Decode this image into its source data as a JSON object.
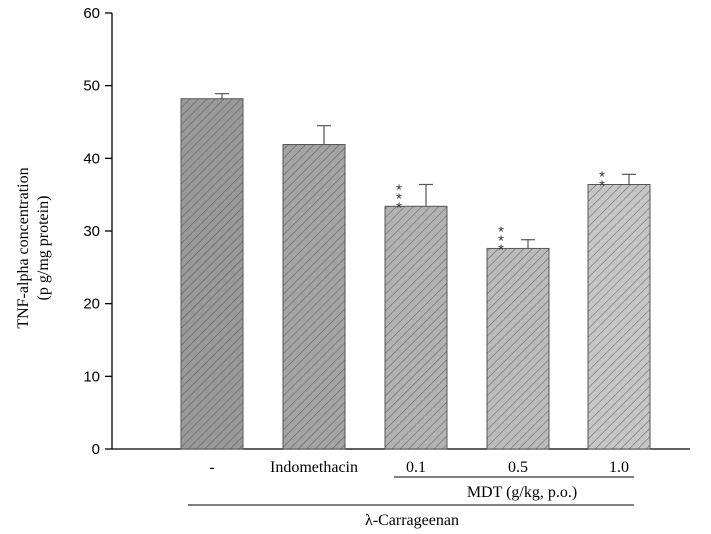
{
  "chart_data": {
    "type": "bar",
    "ylabel": "TNF-alpha concentration",
    "ylabel_unit": "(p g/mg protein)",
    "ylim": [
      0,
      60
    ],
    "yticks": [
      "0",
      "10",
      "20",
      "30",
      "40",
      "50",
      "60"
    ],
    "categories": [
      "-",
      "Indomethacin",
      "0.1",
      "0.5",
      "1.0"
    ],
    "values": [
      48.2,
      41.9,
      33.4,
      27.6,
      36.4
    ],
    "errors": [
      0.7,
      2.6,
      3.0,
      1.2,
      1.4
    ],
    "significance": [
      "",
      "",
      "***",
      "***",
      "**"
    ],
    "bar_fills": [
      "#9a9a9a",
      "#a4a4a4",
      "#b2b2b2",
      "#bbbbbb",
      "#c6c6c6"
    ],
    "group_label_mdt": "MDT (g/kg, p.o.)",
    "group_label_carrageenan": "λ-Carrageenan"
  }
}
